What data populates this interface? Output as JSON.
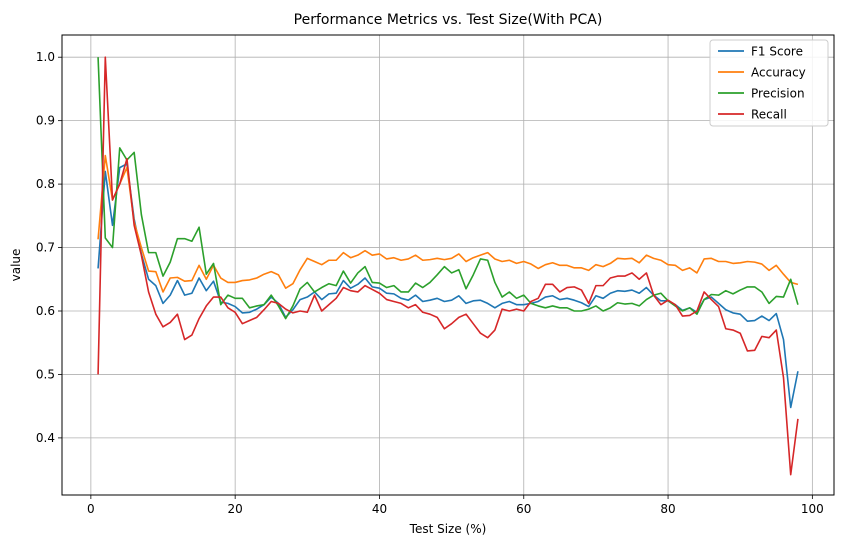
{
  "chart_data": {
    "type": "line",
    "title": "Performance Metrics vs. Test Size(With PCA)",
    "xlabel": "Test Size (%)",
    "ylabel": "value",
    "xlim": [
      -4,
      103
    ],
    "ylim": [
      0.31,
      1.035
    ],
    "xticks": [
      0,
      20,
      40,
      60,
      80,
      100
    ],
    "xtick_labels": [
      "0",
      "20",
      "40",
      "60",
      "80",
      "100"
    ],
    "yticks": [
      0.4,
      0.5,
      0.6,
      0.7,
      0.8,
      0.9,
      1.0
    ],
    "ytick_labels": [
      "0.4",
      "0.5",
      "0.6",
      "0.7",
      "0.8",
      "0.9",
      "1.0"
    ],
    "grid": true,
    "legend_position": "top-right",
    "x": [
      1,
      2,
      3,
      4,
      5,
      6,
      7,
      8,
      9,
      10,
      11,
      12,
      13,
      14,
      15,
      16,
      17,
      18,
      19,
      20,
      21,
      22,
      23,
      24,
      25,
      26,
      27,
      28,
      29,
      30,
      31,
      32,
      33,
      34,
      35,
      36,
      37,
      38,
      39,
      40,
      41,
      42,
      43,
      44,
      45,
      46,
      47,
      48,
      49,
      50,
      51,
      52,
      53,
      54,
      55,
      56,
      57,
      58,
      59,
      60,
      61,
      62,
      63,
      64,
      65,
      66,
      67,
      68,
      69,
      70,
      71,
      72,
      73,
      74,
      75,
      76,
      77,
      78,
      79,
      80,
      81,
      82,
      83,
      84,
      85,
      86,
      87,
      88,
      89,
      90,
      91,
      92,
      93,
      94,
      95,
      96,
      97,
      98
    ],
    "series": [
      {
        "name": "F1 Score",
        "color": "#1f77b4",
        "values": [
          0.667,
          0.82,
          0.735,
          0.826,
          0.832,
          0.745,
          0.69,
          0.65,
          0.64,
          0.612,
          0.625,
          0.648,
          0.625,
          0.628,
          0.652,
          0.632,
          0.647,
          0.614,
          0.612,
          0.607,
          0.597,
          0.598,
          0.603,
          0.61,
          0.622,
          0.612,
          0.59,
          0.602,
          0.618,
          0.622,
          0.63,
          0.618,
          0.627,
          0.628,
          0.648,
          0.636,
          0.642,
          0.652,
          0.638,
          0.636,
          0.628,
          0.627,
          0.62,
          0.617,
          0.625,
          0.615,
          0.617,
          0.62,
          0.615,
          0.617,
          0.624,
          0.612,
          0.616,
          0.617,
          0.612,
          0.605,
          0.612,
          0.615,
          0.61,
          0.61,
          0.612,
          0.615,
          0.622,
          0.624,
          0.618,
          0.62,
          0.617,
          0.613,
          0.607,
          0.624,
          0.62,
          0.628,
          0.632,
          0.631,
          0.633,
          0.628,
          0.637,
          0.625,
          0.616,
          0.616,
          0.61,
          0.601,
          0.605,
          0.598,
          0.618,
          0.622,
          0.612,
          0.602,
          0.597,
          0.595,
          0.584,
          0.585,
          0.592,
          0.585,
          0.596,
          0.555,
          0.448,
          0.505
        ]
      },
      {
        "name": "Accuracy",
        "color": "#ff7f0e",
        "values": [
          0.713,
          0.845,
          0.775,
          0.8,
          0.826,
          0.74,
          0.7,
          0.663,
          0.662,
          0.63,
          0.652,
          0.653,
          0.647,
          0.648,
          0.672,
          0.65,
          0.672,
          0.652,
          0.645,
          0.645,
          0.648,
          0.649,
          0.652,
          0.658,
          0.662,
          0.657,
          0.636,
          0.643,
          0.665,
          0.683,
          0.678,
          0.673,
          0.68,
          0.68,
          0.692,
          0.684,
          0.688,
          0.695,
          0.688,
          0.69,
          0.682,
          0.684,
          0.68,
          0.682,
          0.688,
          0.68,
          0.681,
          0.683,
          0.681,
          0.683,
          0.69,
          0.678,
          0.684,
          0.688,
          0.692,
          0.682,
          0.678,
          0.68,
          0.675,
          0.678,
          0.674,
          0.667,
          0.673,
          0.676,
          0.672,
          0.672,
          0.668,
          0.668,
          0.664,
          0.673,
          0.67,
          0.675,
          0.683,
          0.682,
          0.683,
          0.676,
          0.688,
          0.683,
          0.68,
          0.673,
          0.672,
          0.664,
          0.668,
          0.66,
          0.682,
          0.683,
          0.678,
          0.678,
          0.675,
          0.676,
          0.678,
          0.677,
          0.674,
          0.664,
          0.672,
          0.658,
          0.645,
          0.642
        ]
      },
      {
        "name": "Precision",
        "color": "#2ca02c",
        "values": [
          1.0,
          0.715,
          0.7,
          0.857,
          0.838,
          0.85,
          0.752,
          0.692,
          0.692,
          0.655,
          0.677,
          0.714,
          0.714,
          0.71,
          0.732,
          0.658,
          0.675,
          0.61,
          0.625,
          0.62,
          0.62,
          0.605,
          0.608,
          0.61,
          0.625,
          0.608,
          0.588,
          0.608,
          0.635,
          0.645,
          0.63,
          0.637,
          0.643,
          0.64,
          0.663,
          0.644,
          0.66,
          0.67,
          0.645,
          0.644,
          0.637,
          0.64,
          0.63,
          0.63,
          0.644,
          0.637,
          0.645,
          0.657,
          0.67,
          0.66,
          0.665,
          0.635,
          0.657,
          0.682,
          0.68,
          0.645,
          0.622,
          0.63,
          0.62,
          0.625,
          0.612,
          0.608,
          0.605,
          0.608,
          0.605,
          0.605,
          0.6,
          0.6,
          0.603,
          0.608,
          0.6,
          0.605,
          0.613,
          0.611,
          0.612,
          0.608,
          0.618,
          0.625,
          0.628,
          0.616,
          0.608,
          0.6,
          0.605,
          0.595,
          0.618,
          0.626,
          0.625,
          0.632,
          0.627,
          0.633,
          0.638,
          0.638,
          0.63,
          0.612,
          0.623,
          0.622,
          0.65,
          0.61
        ]
      },
      {
        "name": "Recall",
        "color": "#d62728",
        "values": [
          0.5,
          1.0,
          0.775,
          0.8,
          0.84,
          0.735,
          0.688,
          0.63,
          0.595,
          0.575,
          0.582,
          0.595,
          0.555,
          0.562,
          0.588,
          0.608,
          0.622,
          0.622,
          0.605,
          0.598,
          0.58,
          0.585,
          0.59,
          0.602,
          0.615,
          0.612,
          0.603,
          0.597,
          0.6,
          0.598,
          0.625,
          0.6,
          0.61,
          0.62,
          0.637,
          0.632,
          0.63,
          0.64,
          0.634,
          0.628,
          0.618,
          0.615,
          0.612,
          0.605,
          0.61,
          0.598,
          0.595,
          0.59,
          0.572,
          0.58,
          0.59,
          0.595,
          0.58,
          0.565,
          0.558,
          0.57,
          0.603,
          0.6,
          0.603,
          0.6,
          0.615,
          0.62,
          0.642,
          0.642,
          0.63,
          0.637,
          0.638,
          0.633,
          0.612,
          0.64,
          0.64,
          0.652,
          0.655,
          0.655,
          0.66,
          0.65,
          0.66,
          0.625,
          0.61,
          0.617,
          0.61,
          0.592,
          0.593,
          0.6,
          0.63,
          0.618,
          0.607,
          0.572,
          0.57,
          0.565,
          0.537,
          0.538,
          0.56,
          0.558,
          0.57,
          0.495,
          0.342,
          0.43
        ]
      }
    ]
  }
}
